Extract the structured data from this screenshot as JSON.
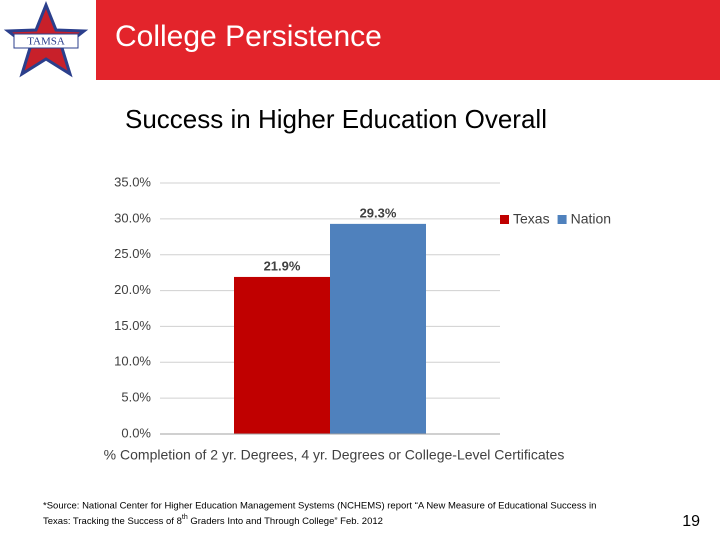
{
  "header": {
    "title": "College Persistence",
    "logo_text": "TAMSA"
  },
  "chart_data": {
    "type": "bar",
    "title": "Success in Higher Education Overall",
    "x_label": "% Completion of 2 yr. Degrees, 4 yr. Degrees or College-Level Certificates",
    "categories": [
      null
    ],
    "series": [
      {
        "name": "Texas",
        "color": "#c00000",
        "values": [
          21.9
        ],
        "value_labels": [
          "21.9%"
        ]
      },
      {
        "name": "Nation",
        "color": "#4f81bd",
        "values": [
          29.3
        ],
        "value_labels": [
          "29.3%"
        ]
      }
    ],
    "ylim": [
      0,
      35
    ],
    "yticks": [
      {
        "value": 0,
        "label": "0.0%"
      },
      {
        "value": 5,
        "label": "5.0%"
      },
      {
        "value": 10,
        "label": "10.0%"
      },
      {
        "value": 15,
        "label": "15.0%"
      },
      {
        "value": 20,
        "label": "20.0%"
      },
      {
        "value": 25,
        "label": "25.0%"
      },
      {
        "value": 30,
        "label": "30.0%"
      },
      {
        "value": 35,
        "label": "35.0%"
      }
    ],
    "grid": true,
    "legend": "right"
  },
  "footnote": [
    "*Source: National Center for Higher Education Management Systems (NCHEMS) report “A New Measure of Educational Success in",
    "Texas: Tracking the Success of 8",
    "th",
    " Graders Into and Through College”  Feb. 2012"
  ],
  "page_number": "19"
}
